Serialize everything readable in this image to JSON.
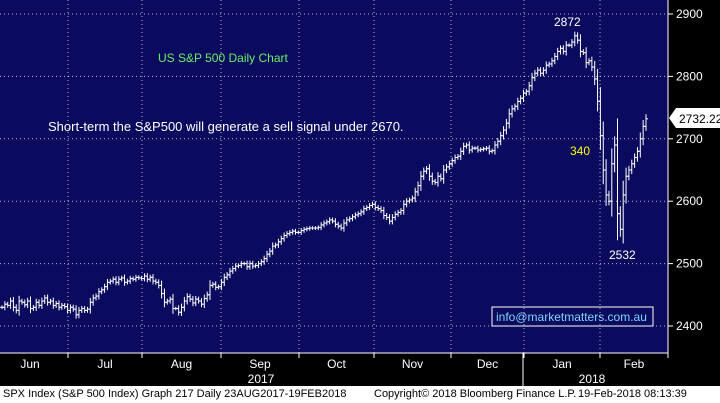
{
  "chart_data": {
    "type": "ohlc",
    "title": "US S&P 500 Daily Chart",
    "ylim": [
      2380,
      2920
    ],
    "y_ticks": [
      2400,
      2500,
      2600,
      2700,
      2800,
      2900
    ],
    "y_tick_labels": [
      "2400",
      "2500",
      "2600",
      "2700",
      "2800",
      "2900"
    ],
    "x_labels": [
      "Jun",
      "Jul",
      "Aug",
      "Sep",
      "Oct",
      "Nov",
      "Dec",
      "Jan",
      "Feb"
    ],
    "year_labels": [
      "2017",
      "2018"
    ],
    "last_price_label": "2732.22",
    "last_price": 2732.22,
    "annotations": {
      "title": "US S&P 500 Daily Chart",
      "note": "Short-term the S&P500 will generate a sell signal under 2670.",
      "high": "2872",
      "low": "2532",
      "range": "340",
      "website": "info@marketmatters.com.au"
    },
    "series": [
      {
        "values": [
          2430,
          2435,
          2433,
          2440,
          2430,
          2425,
          2440,
          2438,
          2434,
          2440,
          2428,
          2430,
          2438,
          2433,
          2440,
          2445,
          2438,
          2440,
          2433,
          2436,
          2430,
          2433,
          2431,
          2425,
          2430,
          2427,
          2418,
          2425,
          2428,
          2425,
          2427,
          2438,
          2445,
          2448,
          2455,
          2458,
          2463,
          2470,
          2472,
          2475,
          2470,
          2475,
          2477,
          2470,
          2472,
          2476,
          2475,
          2478,
          2477,
          2476,
          2480,
          2475,
          2478,
          2472,
          2470,
          2465,
          2452,
          2438,
          2440,
          2443,
          2428,
          2428,
          2422,
          2430,
          2440,
          2447,
          2443,
          2437,
          2443,
          2440,
          2435,
          2444,
          2450,
          2465,
          2467,
          2462,
          2463,
          2470,
          2478,
          2482,
          2488,
          2492,
          2496,
          2497,
          2500,
          2500,
          2495,
          2500,
          2496,
          2497,
          2500,
          2503,
          2508,
          2515,
          2520,
          2528,
          2530,
          2535,
          2540,
          2545,
          2548,
          2550,
          2552,
          2550,
          2550,
          2553,
          2555,
          2556,
          2557,
          2557,
          2557,
          2558,
          2562,
          2565,
          2567,
          2570,
          2568,
          2563,
          2560,
          2557,
          2565,
          2570,
          2572,
          2575,
          2578,
          2580,
          2583,
          2588,
          2590,
          2593,
          2595,
          2590,
          2588,
          2585,
          2577,
          2574,
          2568,
          2574,
          2579,
          2582,
          2585,
          2595,
          2600,
          2602,
          2605,
          2615,
          2625,
          2640,
          2648,
          2652,
          2640,
          2632,
          2630,
          2640,
          2636,
          2650,
          2655,
          2660,
          2665,
          2670,
          2672,
          2680,
          2688,
          2690,
          2682,
          2685,
          2685,
          2682,
          2683,
          2684,
          2685,
          2680,
          2681,
          2690,
          2696,
          2705,
          2714,
          2725,
          2740,
          2748,
          2752,
          2760,
          2765,
          2773,
          2776,
          2785,
          2798,
          2805,
          2810,
          2805,
          2810,
          2818,
          2820,
          2825,
          2832,
          2840,
          2845,
          2840,
          2850,
          2850,
          2855,
          2865,
          2858,
          2840,
          2838,
          2822,
          2825,
          2815,
          2796,
          2760,
          2705,
          2650,
          2610,
          2600,
          2660,
          2690,
          2580,
          2555,
          2610,
          2640,
          2650,
          2660,
          2670,
          2680,
          2700,
          2720,
          2732
        ]
      }
    ]
  },
  "footer": {
    "left": "SPX Index (S&P 500 Index) Graph 217  Daily 23AUG2017-19FEB2018",
    "copyright": "Copyright© 2018 Bloomberg Finance L.P.",
    "timestamp": "19-Feb-2018 08:13:39"
  }
}
